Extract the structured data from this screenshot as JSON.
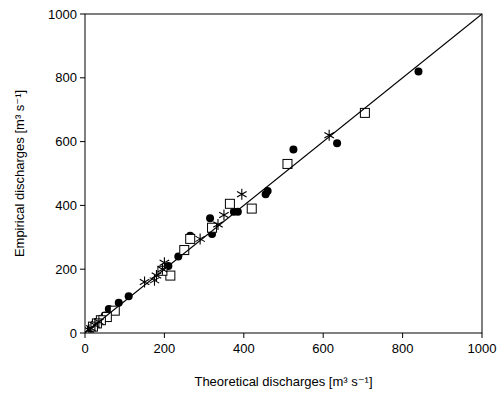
{
  "chart_data": {
    "type": "scatter",
    "x_label": "Theoretical discharges [m³ s⁻¹]",
    "y_label": "Empirical discharges [m³ s⁻¹]",
    "xlim": [
      0,
      1000
    ],
    "ylim": [
      0,
      1000
    ],
    "xticks": [
      0,
      200,
      400,
      600,
      800,
      1000
    ],
    "yticks": [
      0,
      200,
      400,
      600,
      800,
      1000
    ],
    "grid": false,
    "series": [
      {
        "type": "scatter",
        "marker": "circle",
        "color": "#000000",
        "x": [
          840,
          635,
          525,
          460,
          455,
          385,
          375,
          315,
          320,
          265,
          235,
          210,
          110,
          85,
          60,
          50,
          40,
          30,
          25,
          20,
          15
        ],
        "values": [
          820,
          595,
          575,
          445,
          435,
          380,
          380,
          360,
          310,
          305,
          240,
          210,
          115,
          95,
          75,
          55,
          45,
          35,
          30,
          20,
          15
        ]
      },
      {
        "type": "scatter",
        "marker": "square",
        "color": "#000000",
        "x": [
          705,
          510,
          420,
          365,
          320,
          265,
          250,
          215,
          195,
          75,
          55,
          40,
          30,
          20
        ],
        "values": [
          690,
          530,
          390,
          405,
          330,
          295,
          260,
          180,
          195,
          70,
          50,
          40,
          30,
          20
        ]
      },
      {
        "type": "scatter",
        "marker": "star",
        "color": "#000000",
        "x": [
          615,
          395,
          350,
          335,
          290,
          200,
          195,
          180,
          175,
          150,
          35,
          25,
          15,
          10
        ],
        "values": [
          620,
          435,
          370,
          340,
          295,
          220,
          200,
          180,
          165,
          160,
          35,
          25,
          15,
          10
        ]
      },
      {
        "type": "line",
        "line_style": "solid",
        "color": "#000000",
        "x": [
          0,
          1000
        ],
        "values": [
          0,
          1000
        ]
      }
    ]
  }
}
